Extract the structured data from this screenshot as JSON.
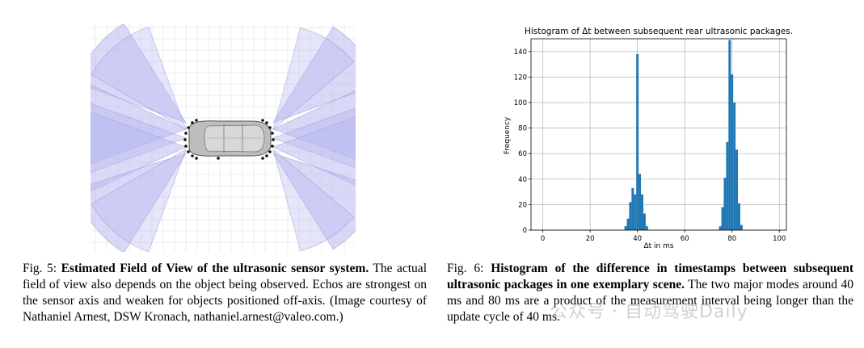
{
  "figure5": {
    "caption_prefix": "Fig. 5: ",
    "caption_title": "Estimated Field of View of the ultrasonic sensor system.",
    "caption_body": " The actual field of view also depends on the object being observed. Echos are strongest on the sensor axis and weaken for objects positioned off-axis. (Image courtesy of Nathaniel Arnest, DSW Kronach, nathaniel.arnest@valeo.com.)",
    "fov_fill_color": "#b8b8f0",
    "fov_edge_color": "#9a9ad8"
  },
  "figure6": {
    "caption_prefix": "Fig. 6: ",
    "caption_title": "Histogram of the difference in timestamps between subsequent ultrasonic packages in one exemplary scene.",
    "caption_body": " The two major modes around 40 ms and 80 ms are a product of the measurement interval being longer than the update cycle of 40 ms."
  },
  "watermark": "公众号 · 自动驾驶Daily",
  "chart_data": {
    "type": "bar",
    "title": "Histogram of Δt between subsequent rear ultrasonic packages.",
    "xlabel": "Δt in ms",
    "ylabel": "Frequency",
    "xlim": [
      -5,
      103
    ],
    "ylim": [
      0,
      150
    ],
    "xticks": [
      0,
      20,
      40,
      60,
      80,
      100
    ],
    "yticks": [
      0,
      20,
      40,
      60,
      80,
      100,
      120,
      140
    ],
    "grid": true,
    "bar_color": "#1f77b4",
    "bin_width": 1,
    "bins": [
      {
        "x": 35,
        "value": 3
      },
      {
        "x": 36,
        "value": 9
      },
      {
        "x": 37,
        "value": 22
      },
      {
        "x": 38,
        "value": 33
      },
      {
        "x": 39,
        "value": 28
      },
      {
        "x": 40,
        "value": 138
      },
      {
        "x": 41,
        "value": 44
      },
      {
        "x": 42,
        "value": 28
      },
      {
        "x": 43,
        "value": 13
      },
      {
        "x": 44,
        "value": 3
      },
      {
        "x": 75,
        "value": 3
      },
      {
        "x": 76,
        "value": 18
      },
      {
        "x": 77,
        "value": 41
      },
      {
        "x": 78,
        "value": 69
      },
      {
        "x": 79,
        "value": 149
      },
      {
        "x": 80,
        "value": 122
      },
      {
        "x": 81,
        "value": 100
      },
      {
        "x": 82,
        "value": 63
      },
      {
        "x": 83,
        "value": 21
      },
      {
        "x": 84,
        "value": 4
      }
    ]
  }
}
